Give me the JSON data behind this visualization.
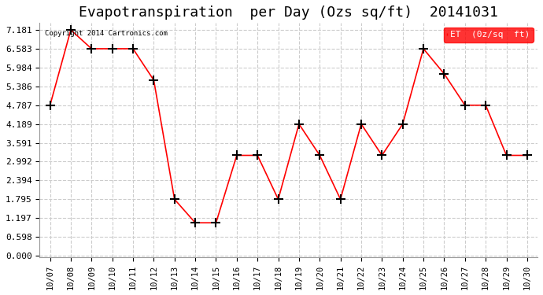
{
  "title": "Evapotranspiration  per Day (Ozs sq/ft)  20141031",
  "copyright": "Copyright 2014 Cartronics.com",
  "legend_label": "ET  (0z/sq  ft)",
  "dates": [
    "10/07",
    "10/08",
    "10/09",
    "10/10",
    "10/11",
    "10/12",
    "10/13",
    "10/14",
    "10/15",
    "10/16",
    "10/17",
    "10/18",
    "10/19",
    "10/20",
    "10/21",
    "10/22",
    "10/23",
    "10/24",
    "10/25",
    "10/26",
    "10/27",
    "10/28",
    "10/29",
    "10/30"
  ],
  "values": [
    4.787,
    7.181,
    6.583,
    6.583,
    6.583,
    5.584,
    1.795,
    1.048,
    1.048,
    3.192,
    3.192,
    1.795,
    4.189,
    3.192,
    1.795,
    4.189,
    3.192,
    4.189,
    6.583,
    5.784,
    4.787,
    4.787,
    3.192,
    3.192
  ],
  "yticks": [
    0.0,
    0.598,
    1.197,
    1.795,
    2.394,
    2.992,
    3.591,
    4.189,
    4.787,
    5.386,
    5.984,
    6.583,
    7.181
  ],
  "line_color": "red",
  "marker": "+",
  "marker_color": "black",
  "bg_color": "white",
  "grid_color": "#cccccc",
  "title_fontsize": 13,
  "legend_bg": "red",
  "legend_text_color": "white"
}
